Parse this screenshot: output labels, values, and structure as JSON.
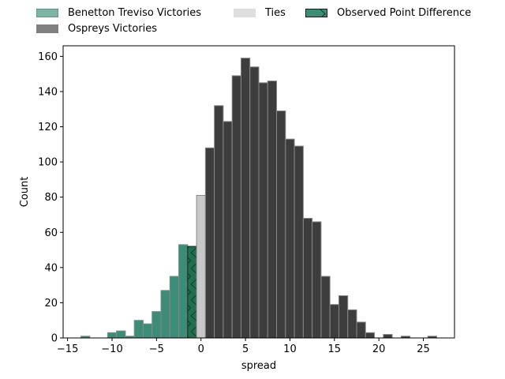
{
  "legend": {
    "benetton": "Benetton Treviso Victories",
    "ospreys": "Ospreys Victories",
    "ties": "Ties",
    "observed": "Observed Point Difference"
  },
  "colors": {
    "benetton": "#3d8c78",
    "ospreys": "#3d3d3d",
    "ties": "#c8c8c8",
    "observed": "#1f7050",
    "edge": "#888888"
  },
  "chart_data": {
    "type": "bar",
    "xlabel": "spread",
    "ylabel": "Count",
    "xlim": [
      -15.5,
      28.5
    ],
    "ylim": [
      0,
      166
    ],
    "xticks": [
      -15,
      -10,
      -5,
      0,
      5,
      10,
      15,
      20,
      25
    ],
    "yticks": [
      0,
      20,
      40,
      60,
      80,
      100,
      120,
      140,
      160
    ],
    "observed_point_difference": -1,
    "series": [
      {
        "name": "Benetton Treviso Victories",
        "x": [
          -13,
          -12,
          -11,
          -10,
          -9,
          -8,
          -7,
          -6,
          -5,
          -4,
          -3,
          -2,
          -1
        ],
        "values": [
          1,
          0,
          0,
          3,
          4,
          1,
          10,
          8,
          15,
          27,
          35,
          53,
          52
        ]
      },
      {
        "name": "Ties",
        "x": [
          0
        ],
        "values": [
          81
        ]
      },
      {
        "name": "Ospreys Victories",
        "x": [
          1,
          2,
          3,
          4,
          5,
          6,
          7,
          8,
          9,
          10,
          11,
          12,
          13,
          14,
          15,
          16,
          17,
          18,
          19,
          20,
          21,
          22,
          23,
          24,
          25,
          26
        ],
        "values": [
          108,
          132,
          123,
          149,
          159,
          154,
          145,
          146,
          129,
          113,
          109,
          68,
          66,
          35,
          19,
          24,
          16,
          9,
          3,
          0,
          2,
          0,
          1,
          0,
          0,
          1
        ]
      }
    ]
  }
}
